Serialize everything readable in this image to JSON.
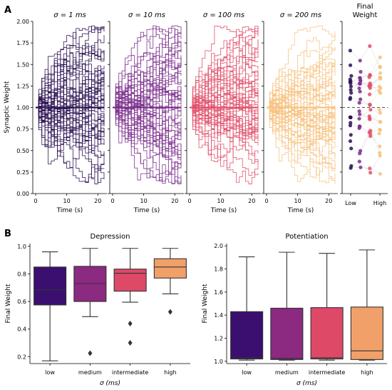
{
  "panel_labels": [
    "A",
    "B"
  ],
  "panel_a": {
    "ylabel": "Synaptic Weight",
    "xlabel": "Time (s)",
    "y_ticks": [
      "0.00",
      "0.25",
      "0.50",
      "0.75",
      "1.00",
      "1.25",
      "1.50",
      "1.75",
      "2.00"
    ],
    "x_ticks": [
      "0",
      "10",
      "20"
    ],
    "final_title": "Final\nWeight",
    "final_x_ticks": [
      "Low",
      "High"
    ],
    "colors": [
      "#2b1252",
      "#7a2e8c",
      "#e0506b",
      "#f7c27f"
    ]
  },
  "chart_data": [
    {
      "type": "line",
      "panel": "A",
      "title": "σ = 1 ms",
      "xlabel": "Time (s)",
      "ylabel": "Synaptic Weight",
      "xlim": [
        0,
        22
      ],
      "ylim": [
        0,
        2
      ],
      "note": "many stepwise weight trajectories starting at 1.0, spreading to the 0–2 range"
    },
    {
      "type": "line",
      "panel": "A",
      "title": "σ = 10 ms",
      "xlabel": "Time (s)",
      "xlim": [
        0,
        22
      ],
      "ylim": [
        0,
        2
      ]
    },
    {
      "type": "line",
      "panel": "A",
      "title": "σ = 100 ms",
      "xlabel": "Time (s)",
      "xlim": [
        0,
        22
      ],
      "ylim": [
        0,
        2
      ]
    },
    {
      "type": "line",
      "panel": "A",
      "title": "σ = 200 ms",
      "xlabel": "Time (s)",
      "xlim": [
        0,
        22
      ],
      "ylim": [
        0,
        2
      ]
    },
    {
      "type": "scatter",
      "panel": "A",
      "title": "Final\nWeight",
      "categories": [
        "Low",
        "High"
      ],
      "reference_line": 1.0
    },
    {
      "type": "box",
      "panel": "B",
      "title": "Depression",
      "xlabel": "σ (ms)",
      "ylabel": "Final Weight",
      "categories": [
        "low",
        "medium",
        "intermediate",
        "high"
      ],
      "ylim": [
        0.15,
        1.02
      ],
      "y_ticks": [
        0.2,
        0.4,
        0.6,
        0.8,
        1.0
      ],
      "boxes": [
        {
          "whisker_low": 0.17,
          "q1": 0.575,
          "median": 0.685,
          "q3": 0.85,
          "whisker_high": 0.96,
          "outliers": []
        },
        {
          "whisker_low": 0.49,
          "q1": 0.6,
          "median": 0.73,
          "q3": 0.855,
          "whisker_high": 0.985,
          "outliers": [
            0.225
          ]
        },
        {
          "whisker_low": 0.595,
          "q1": 0.675,
          "median": 0.805,
          "q3": 0.835,
          "whisker_high": 0.985,
          "outliers": [
            0.44,
            0.3
          ]
        },
        {
          "whisker_low": 0.655,
          "q1": 0.77,
          "median": 0.85,
          "q3": 0.91,
          "whisker_high": 0.985,
          "outliers": [
            0.525
          ]
        }
      ],
      "colors": [
        "#3b0f6f",
        "#8c2981",
        "#de4968",
        "#f1a069"
      ]
    },
    {
      "type": "box",
      "panel": "B",
      "title": "Potentiation",
      "xlabel": "σ (ms)",
      "ylabel": "Final Weight",
      "categories": [
        "low",
        "medium",
        "intermediate",
        "high"
      ],
      "ylim": [
        0.98,
        2.02
      ],
      "y_ticks": [
        1.0,
        1.2,
        1.4,
        1.6,
        1.8,
        2.0
      ],
      "boxes": [
        {
          "whisker_low": 1.01,
          "q1": 1.02,
          "median": 1.03,
          "q3": 1.43,
          "whisker_high": 1.905,
          "outliers": []
        },
        {
          "whisker_low": 1.01,
          "q1": 1.015,
          "median": 1.025,
          "q3": 1.46,
          "whisker_high": 1.945,
          "outliers": []
        },
        {
          "whisker_low": 1.01,
          "q1": 1.02,
          "median": 1.03,
          "q3": 1.465,
          "whisker_high": 1.935,
          "outliers": []
        },
        {
          "whisker_low": 1.01,
          "q1": 1.015,
          "median": 1.09,
          "q3": 1.47,
          "whisker_high": 1.965,
          "outliers": []
        }
      ],
      "colors": [
        "#3b0f6f",
        "#8c2981",
        "#de4968",
        "#f1a069"
      ]
    }
  ]
}
